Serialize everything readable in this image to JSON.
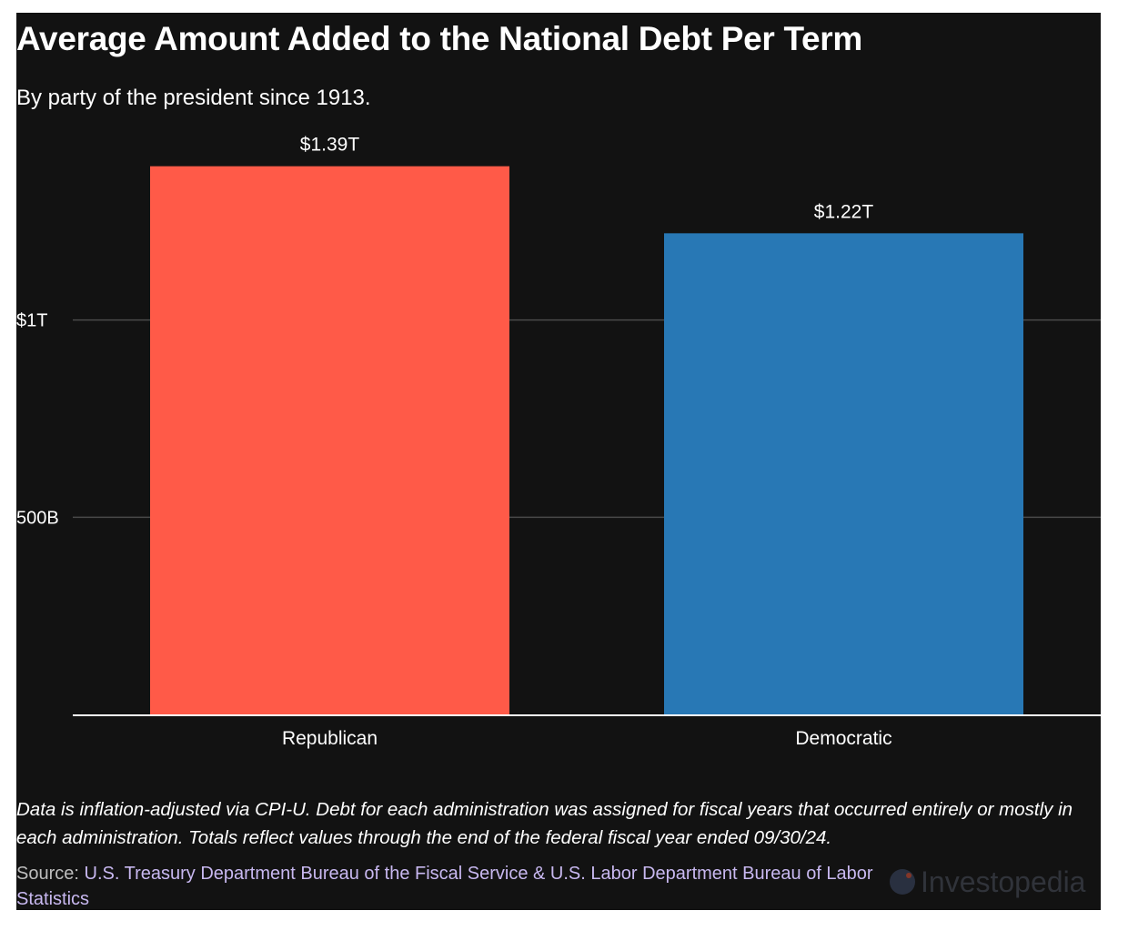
{
  "chart_data": {
    "type": "bar",
    "title": "Average Amount Added to the National Debt Per Term",
    "subtitle": "By party of the president since 1913.",
    "categories": [
      "Republican",
      "Democratic"
    ],
    "values": [
      1.39,
      1.22
    ],
    "value_labels": [
      "$1.39T",
      "$1.22T"
    ],
    "colors": [
      "#ff5a48",
      "#2878b5"
    ],
    "yticks": [
      {
        "value": 0.5,
        "label": "500B"
      },
      {
        "value": 1.0,
        "label": "$1T"
      }
    ],
    "ylim": [
      0,
      1.5
    ],
    "xlabel": "",
    "ylabel": "",
    "grid": true,
    "legend": "none"
  },
  "note": "Data is inflation-adjusted via CPI-U. Debt for each administration was assigned for fiscal years that occurred entirely or mostly in each administration. Totals reflect values through the end of the federal fiscal year ended 09/30/24.",
  "source_label": "Source:",
  "source_text": "U.S. Treasury Department Bureau of the Fiscal Service & U.S. Labor Department Bureau of Labor Statistics",
  "logo_text": "Investopedia"
}
